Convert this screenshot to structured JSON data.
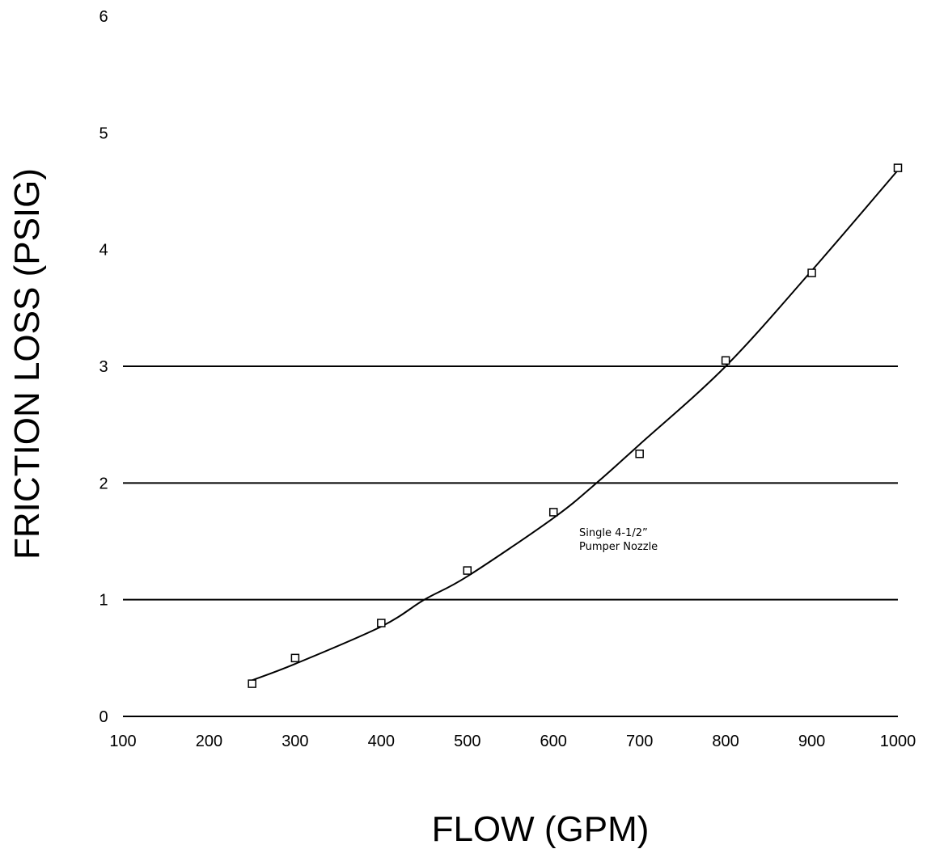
{
  "chart_data": {
    "type": "scatter",
    "title": "",
    "xlabel": "FLOW (GPM)",
    "ylabel": "FRICTION LOSS (PSIG)",
    "xlim": [
      100,
      1000
    ],
    "ylim": [
      0,
      6
    ],
    "x_ticks": [
      100,
      200,
      300,
      400,
      500,
      600,
      700,
      800,
      900,
      1000
    ],
    "y_ticks": [
      0,
      1,
      2,
      3,
      4,
      5,
      6
    ],
    "gridlines_y": [
      1,
      2,
      3
    ],
    "series": [
      {
        "marker": "open-square",
        "x": [
          250,
          300,
          400,
          500,
          600,
          700,
          800,
          900,
          1000
        ],
        "y": [
          0.28,
          0.5,
          0.8,
          1.25,
          1.75,
          2.25,
          3.05,
          3.8,
          4.7
        ]
      }
    ],
    "fit_curve": {
      "x": [
        250,
        300,
        400,
        450,
        500,
        600,
        650,
        700,
        800,
        900,
        1000
      ],
      "y": [
        0.31,
        0.45,
        0.77,
        1.0,
        1.2,
        1.7,
        2.0,
        2.33,
        3.0,
        3.82,
        4.68
      ]
    },
    "annotations": [
      {
        "lines": [
          "Single 4-1/2”",
          "Pumper Nozzle"
        ],
        "x": 615,
        "y": 1.5
      }
    ]
  },
  "colors": {
    "background": "#ffffff",
    "ink": "#000000"
  }
}
